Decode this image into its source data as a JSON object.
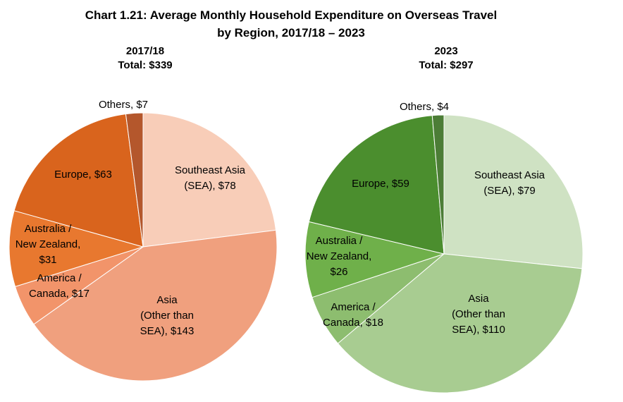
{
  "chart_data": {
    "title_line1": "Chart 1.21: Average Monthly Household Expenditure on Overseas Travel",
    "title_line2": "by Region, 2017/18 – 2023",
    "pies": [
      {
        "type": "pie",
        "period": "2017/18",
        "total_label": "Total: $339",
        "total": 339,
        "slices": [
          {
            "category": "Southeast Asia (SEA)",
            "value": 78,
            "label_lines": [
              "Southeast Asia",
              "(SEA), $78"
            ],
            "color": "#f8cdb8"
          },
          {
            "category": "Asia (Other than SEA)",
            "value": 143,
            "label_lines": [
              "Asia",
              "(Other than",
              "SEA), $143"
            ],
            "color": "#f0a07e"
          },
          {
            "category": "America / Canada",
            "value": 17,
            "label_lines": [
              "America /",
              "Canada, $17"
            ],
            "color": "#f2946a"
          },
          {
            "category": "Australia / New Zealand",
            "value": 31,
            "label_lines": [
              "Australia /",
              "New Zealand,",
              "$31"
            ],
            "color": "#e8782f"
          },
          {
            "category": "Europe",
            "value": 63,
            "label_lines": [
              "Europe, $63"
            ],
            "color": "#d9641d"
          },
          {
            "category": "Others",
            "value": 7,
            "label_lines": [
              "Others, $7"
            ],
            "color": "#b4572c"
          }
        ]
      },
      {
        "type": "pie",
        "period": "2023",
        "total_label": "Total: $297",
        "total": 297,
        "slices": [
          {
            "category": "Southeast Asia (SEA)",
            "value": 79,
            "label_lines": [
              "Southeast Asia",
              "(SEA), $79"
            ],
            "color": "#cfe2c3"
          },
          {
            "category": "Asia (Other than SEA)",
            "value": 110,
            "label_lines": [
              "Asia",
              "(Other than",
              "SEA), $110"
            ],
            "color": "#a8cc91"
          },
          {
            "category": "America / Canada",
            "value": 18,
            "label_lines": [
              "America /",
              "Canada, $18"
            ],
            "color": "#8dbd6f"
          },
          {
            "category": "Australia / New Zealand",
            "value": 26,
            "label_lines": [
              "Australia /",
              "New Zealand,",
              "$26"
            ],
            "color": "#6fb04a"
          },
          {
            "category": "Europe",
            "value": 59,
            "label_lines": [
              "Europe, $59"
            ],
            "color": "#4b8e2e"
          },
          {
            "category": "Others",
            "value": 4,
            "label_lines": [
              "Others, $4"
            ],
            "color": "#4c7d36"
          }
        ]
      }
    ]
  }
}
